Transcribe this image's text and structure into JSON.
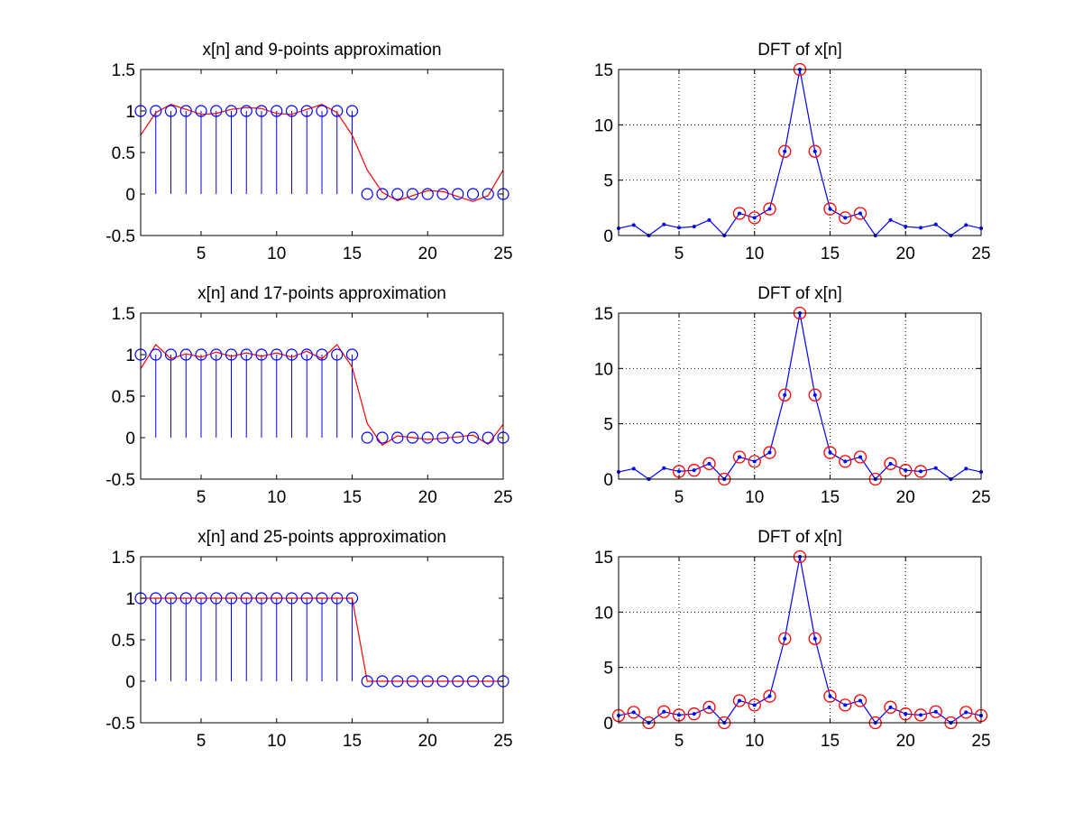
{
  "chart_data": [
    {
      "type": "stem",
      "title": "x[n] and 9-points approximation",
      "xlim": [
        1,
        25
      ],
      "ylim": [
        -0.5,
        1.5
      ],
      "xticks": [
        5,
        10,
        15,
        20,
        25
      ],
      "yticks": [
        -0.5,
        0,
        0.5,
        1,
        1.5
      ],
      "ytick_labels": [
        "-0.5",
        "0",
        "0.5",
        "1",
        "1.5"
      ],
      "grid": false,
      "stem": {
        "x": [
          1,
          2,
          3,
          4,
          5,
          6,
          7,
          8,
          9,
          10,
          11,
          12,
          13,
          14,
          15,
          16,
          17,
          18,
          19,
          20,
          21,
          22,
          23,
          24,
          25
        ],
        "y": [
          1,
          1,
          1,
          1,
          1,
          1,
          1,
          1,
          1,
          1,
          1,
          1,
          1,
          1,
          1,
          0,
          0,
          0,
          0,
          0,
          0,
          0,
          0,
          0,
          0
        ]
      },
      "approximation": {
        "x": [
          1,
          2,
          3,
          4,
          5,
          6,
          7,
          8,
          9,
          10,
          11,
          12,
          13,
          14,
          15,
          16,
          17,
          18,
          19,
          20,
          21,
          22,
          23,
          24,
          25
        ],
        "y": [
          0.71,
          0.98,
          1.08,
          1.02,
          0.96,
          0.97,
          1.02,
          1.04,
          1.03,
          0.97,
          0.96,
          1.02,
          1.08,
          0.98,
          0.71,
          0.29,
          0.02,
          -0.08,
          -0.02,
          0.04,
          0.03,
          -0.03,
          -0.09,
          -0.02,
          0.29
        ]
      },
      "colors": {
        "stem": "#0000ff",
        "approximation": "#ff0000"
      }
    },
    {
      "type": "line",
      "title": "DFT of x[n]",
      "xlim": [
        1,
        25
      ],
      "ylim": [
        0,
        15
      ],
      "xticks": [
        5,
        10,
        15,
        20,
        25
      ],
      "yticks": [
        0,
        5,
        10,
        15
      ],
      "ytick_labels": [
        "0",
        "5",
        "10",
        "15"
      ],
      "grid": true,
      "x": [
        1,
        2,
        3,
        4,
        5,
        6,
        7,
        8,
        9,
        10,
        11,
        12,
        13,
        14,
        15,
        16,
        17,
        18,
        19,
        20,
        21,
        22,
        23,
        24,
        25
      ],
      "y": [
        0.65,
        0.95,
        0,
        1.0,
        0.7,
        0.8,
        1.4,
        0,
        2.0,
        1.6,
        2.4,
        7.6,
        15,
        7.6,
        2.4,
        1.6,
        2.0,
        0,
        1.4,
        0.8,
        0.7,
        1.0,
        0,
        0.95,
        0.65
      ],
      "highlighted_x": [
        9,
        10,
        11,
        12,
        13,
        14,
        15,
        16,
        17
      ],
      "colors": {
        "line": "#0000ff",
        "highlight": "#ff0000"
      }
    },
    {
      "type": "stem",
      "title": "x[n] and 17-points approximation",
      "xlim": [
        1,
        25
      ],
      "ylim": [
        -0.5,
        1.5
      ],
      "xticks": [
        5,
        10,
        15,
        20,
        25
      ],
      "yticks": [
        -0.5,
        0,
        0.5,
        1,
        1.5
      ],
      "ytick_labels": [
        "-0.5",
        "0",
        "0.5",
        "1",
        "1.5"
      ],
      "grid": false,
      "stem": {
        "x": [
          1,
          2,
          3,
          4,
          5,
          6,
          7,
          8,
          9,
          10,
          11,
          12,
          13,
          14,
          15,
          16,
          17,
          18,
          19,
          20,
          21,
          22,
          23,
          24,
          25
        ],
        "y": [
          1,
          1,
          1,
          1,
          1,
          1,
          1,
          1,
          1,
          1,
          1,
          1,
          1,
          1,
          1,
          0,
          0,
          0,
          0,
          0,
          0,
          0,
          0,
          0,
          0
        ]
      },
      "approximation": {
        "x": [
          1,
          2,
          3,
          4,
          5,
          6,
          7,
          8,
          9,
          10,
          11,
          12,
          13,
          14,
          15,
          16,
          17,
          18,
          19,
          20,
          21,
          22,
          23,
          24,
          25
        ],
        "y": [
          0.83,
          1.12,
          0.95,
          1.01,
          0.97,
          1.03,
          0.98,
          1.02,
          0.98,
          1.02,
          0.97,
          1.04,
          0.95,
          1.12,
          0.85,
          0.17,
          -0.09,
          0.02,
          0.0,
          -0.02,
          -0.01,
          0.01,
          0.03,
          -0.08,
          0.16
        ]
      },
      "colors": {
        "stem": "#0000ff",
        "approximation": "#ff0000"
      }
    },
    {
      "type": "line",
      "title": "DFT of x[n]",
      "xlim": [
        1,
        25
      ],
      "ylim": [
        0,
        15
      ],
      "xticks": [
        5,
        10,
        15,
        20,
        25
      ],
      "yticks": [
        0,
        5,
        10,
        15
      ],
      "ytick_labels": [
        "0",
        "5",
        "10",
        "15"
      ],
      "grid": true,
      "x": [
        1,
        2,
        3,
        4,
        5,
        6,
        7,
        8,
        9,
        10,
        11,
        12,
        13,
        14,
        15,
        16,
        17,
        18,
        19,
        20,
        21,
        22,
        23,
        24,
        25
      ],
      "y": [
        0.65,
        0.95,
        0,
        1.0,
        0.7,
        0.8,
        1.4,
        0,
        2.0,
        1.6,
        2.4,
        7.6,
        15,
        7.6,
        2.4,
        1.6,
        2.0,
        0,
        1.4,
        0.8,
        0.7,
        1.0,
        0,
        0.95,
        0.65
      ],
      "highlighted_x": [
        5,
        6,
        7,
        8,
        9,
        10,
        11,
        12,
        13,
        14,
        15,
        16,
        17,
        18,
        19,
        20,
        21
      ],
      "colors": {
        "line": "#0000ff",
        "highlight": "#ff0000"
      }
    },
    {
      "type": "stem",
      "title": "x[n] and 25-points approximation",
      "xlim": [
        1,
        25
      ],
      "ylim": [
        -0.5,
        1.5
      ],
      "xticks": [
        5,
        10,
        15,
        20,
        25
      ],
      "yticks": [
        -0.5,
        0,
        0.5,
        1,
        1.5
      ],
      "ytick_labels": [
        "-0.5",
        "0",
        "0.5",
        "1",
        "1.5"
      ],
      "grid": false,
      "stem": {
        "x": [
          1,
          2,
          3,
          4,
          5,
          6,
          7,
          8,
          9,
          10,
          11,
          12,
          13,
          14,
          15,
          16,
          17,
          18,
          19,
          20,
          21,
          22,
          23,
          24,
          25
        ],
        "y": [
          1,
          1,
          1,
          1,
          1,
          1,
          1,
          1,
          1,
          1,
          1,
          1,
          1,
          1,
          1,
          0,
          0,
          0,
          0,
          0,
          0,
          0,
          0,
          0,
          0
        ]
      },
      "approximation": {
        "x": [
          1,
          2,
          3,
          4,
          5,
          6,
          7,
          8,
          9,
          10,
          11,
          12,
          13,
          14,
          15,
          16,
          17,
          18,
          19,
          20,
          21,
          22,
          23,
          24,
          25
        ],
        "y": [
          1,
          1,
          1,
          1,
          1,
          1,
          1,
          1,
          1,
          1,
          1,
          1,
          1,
          1,
          1,
          0,
          0,
          0,
          0,
          0,
          0,
          0,
          0,
          0,
          0
        ]
      },
      "colors": {
        "stem": "#0000ff",
        "approximation": "#ff0000"
      }
    },
    {
      "type": "line",
      "title": "DFT of x[n]",
      "xlim": [
        1,
        25
      ],
      "ylim": [
        0,
        15
      ],
      "xticks": [
        5,
        10,
        15,
        20,
        25
      ],
      "yticks": [
        0,
        5,
        10,
        15
      ],
      "ytick_labels": [
        "0",
        "5",
        "10",
        "15"
      ],
      "grid": true,
      "x": [
        1,
        2,
        3,
        4,
        5,
        6,
        7,
        8,
        9,
        10,
        11,
        12,
        13,
        14,
        15,
        16,
        17,
        18,
        19,
        20,
        21,
        22,
        23,
        24,
        25
      ],
      "y": [
        0.65,
        0.95,
        0,
        1.0,
        0.7,
        0.8,
        1.4,
        0,
        2.0,
        1.6,
        2.4,
        7.6,
        15,
        7.6,
        2.4,
        1.6,
        2.0,
        0,
        1.4,
        0.8,
        0.7,
        1.0,
        0,
        0.95,
        0.65
      ],
      "highlighted_x": [
        1,
        2,
        3,
        4,
        5,
        6,
        7,
        8,
        9,
        10,
        11,
        12,
        13,
        14,
        15,
        16,
        17,
        18,
        19,
        20,
        21,
        22,
        23,
        24,
        25
      ],
      "colors": {
        "line": "#0000ff",
        "highlight": "#ff0000"
      }
    }
  ]
}
